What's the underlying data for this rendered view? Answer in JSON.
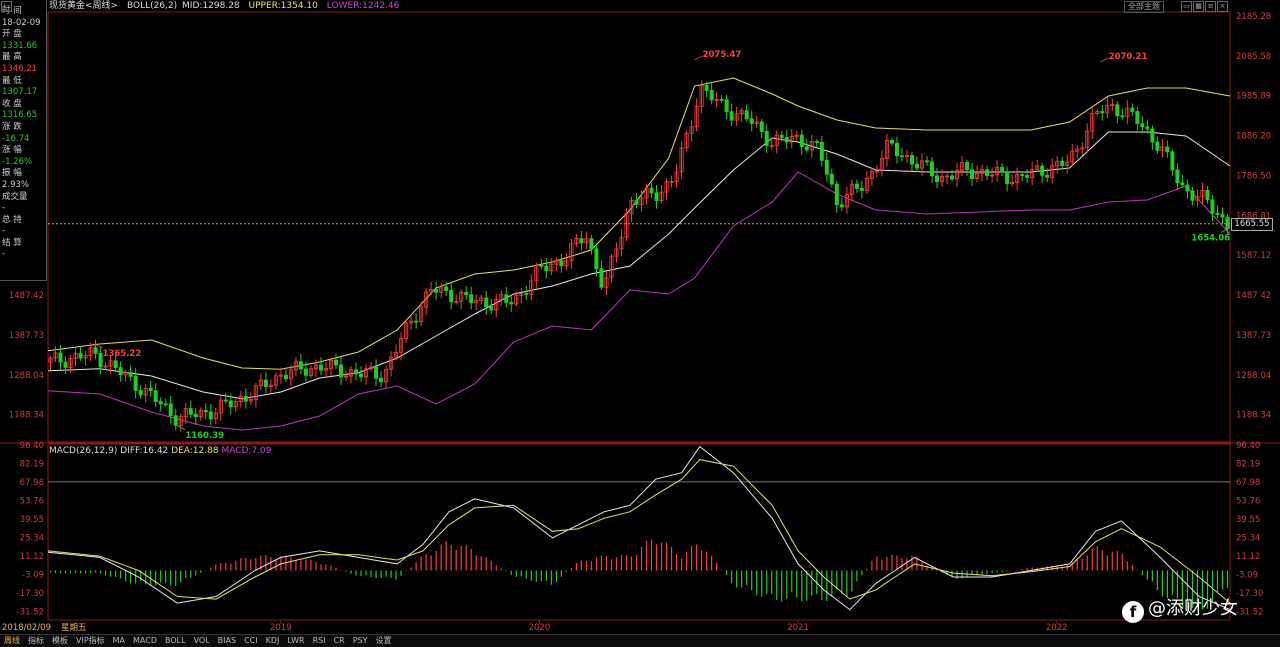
{
  "header": {
    "title": "现货黄金<周线>",
    "boll_label": "BOLL(26,2)",
    "mid": "MID:1298.28",
    "upper": "UPPER:1354.10",
    "lower": "LOWER:1242.46",
    "theme_button": "全部主题"
  },
  "macd_header": {
    "label": "MACD(26,12,9)",
    "diff": "DIFF:16.42",
    "dea": "DEA:12.88",
    "macd": "MACD:7.09"
  },
  "info_panel": {
    "items": [
      {
        "label": "时 间",
        "value": "18-02-09",
        "value_color": "white"
      },
      {
        "label": "开 盘",
        "value": "1331.66",
        "value_color": "green"
      },
      {
        "label": "最 高",
        "value": "1346.21",
        "value_color": "red"
      },
      {
        "label": "最 低",
        "value": "1307.17",
        "value_color": "green"
      },
      {
        "label": "收 盘",
        "value": "1316.65",
        "value_color": "green"
      },
      {
        "label": "涨 跌",
        "value": "-16.74",
        "value_color": "green"
      },
      {
        "label": "涨 幅",
        "value": "-1.26%",
        "value_color": "green"
      },
      {
        "label": "振 幅",
        "value": "2.93%",
        "value_color": "white"
      },
      {
        "label": "成交量",
        "value": "-",
        "value_color": "white"
      },
      {
        "label": "总 持",
        "value": "-",
        "value_color": "white"
      },
      {
        "label": "结 算",
        "value": "-",
        "value_color": "white"
      }
    ]
  },
  "current_price": "1665.55",
  "bottom_bar": {
    "date": "2018/02/09",
    "weekday": "星期五"
  },
  "tabs": [
    {
      "label": "周线",
      "active": true
    },
    {
      "label": "指标",
      "active": false
    },
    {
      "label": "模板",
      "active": false
    },
    {
      "label": "VIP指标",
      "active": false
    },
    {
      "label": "MA",
      "active": false
    },
    {
      "label": "MACD",
      "active": false
    },
    {
      "label": "BOLL",
      "active": false
    },
    {
      "label": "VOL",
      "active": false
    },
    {
      "label": "BIAS",
      "active": false
    },
    {
      "label": "CCI",
      "active": false
    },
    {
      "label": "KDJ",
      "active": false
    },
    {
      "label": "LWR",
      "active": false
    },
    {
      "label": "RSI",
      "active": false
    },
    {
      "label": "CR",
      "active": false
    },
    {
      "label": "PSY",
      "active": false
    },
    {
      "label": "设置",
      "active": false
    }
  ],
  "watermark": "@添财少女",
  "colors": {
    "up": "#ff3b3b",
    "down": "#1fcf1f",
    "upper_band": "#e6e06a",
    "mid_band": "#e8e8e8",
    "lower_band": "#c033c0",
    "dea": "#e6e06a",
    "diff": "#e8e8e8",
    "grid": "#8a1a1a"
  },
  "chart_data": [
    {
      "type": "line",
      "title": "",
      "y_ticks": [
        2185.28,
        2085.58,
        1985.89,
        1886.2,
        1786.5,
        1686.81,
        1587.12,
        1487.42,
        1387.73,
        1288.04,
        1188.34
      ],
      "ylim": [
        1120,
        2195
      ],
      "x_ticks": [
        "2019",
        "2020",
        "2021",
        "2022"
      ],
      "x_tick_pos": [
        2019.0,
        2020.0,
        2021.0,
        2022.0
      ],
      "xlim": [
        2018.1,
        2022.67
      ],
      "annotations": [
        {
          "text": "1365.22",
          "x": 2018.28,
          "y": 1365.22
        },
        {
          "text": "1160.39",
          "x": 2018.6,
          "y": 1160.39
        },
        {
          "text": "2075.47",
          "x": 2020.6,
          "y": 2075.47
        },
        {
          "text": "2070.21",
          "x": 2022.17,
          "y": 2070.21
        },
        {
          "text": "1654.06",
          "x": 2022.66,
          "y": 1654.06
        }
      ],
      "reference_price": 1665.55,
      "series": [
        {
          "name": "UPPER",
          "x": [
            2018.1,
            2018.3,
            2018.5,
            2018.7,
            2018.85,
            2019.0,
            2019.15,
            2019.3,
            2019.45,
            2019.6,
            2019.75,
            2019.9,
            2020.05,
            2020.2,
            2020.35,
            2020.5,
            2020.6,
            2020.75,
            2020.9,
            2021.0,
            2021.15,
            2021.3,
            2021.5,
            2021.7,
            2021.9,
            2022.05,
            2022.2,
            2022.35,
            2022.5,
            2022.67
          ],
          "y": [
            1348,
            1365,
            1375,
            1330,
            1305,
            1302,
            1320,
            1345,
            1400,
            1505,
            1540,
            1550,
            1570,
            1600,
            1700,
            1830,
            2010,
            2030,
            1990,
            1960,
            1925,
            1905,
            1900,
            1900,
            1900,
            1920,
            1985,
            2005,
            2005,
            1985
          ]
        },
        {
          "name": "MID",
          "x": [
            2018.1,
            2018.3,
            2018.5,
            2018.7,
            2018.85,
            2019.0,
            2019.15,
            2019.3,
            2019.45,
            2019.6,
            2019.75,
            2019.9,
            2020.05,
            2020.2,
            2020.35,
            2020.5,
            2020.6,
            2020.75,
            2020.9,
            2021.0,
            2021.15,
            2021.3,
            2021.5,
            2021.7,
            2021.9,
            2022.05,
            2022.2,
            2022.35,
            2022.5,
            2022.67
          ],
          "y": [
            1298,
            1303,
            1285,
            1245,
            1228,
            1245,
            1280,
            1293,
            1330,
            1385,
            1440,
            1490,
            1510,
            1540,
            1560,
            1640,
            1705,
            1800,
            1880,
            1870,
            1840,
            1800,
            1795,
            1795,
            1795,
            1805,
            1895,
            1895,
            1885,
            1810
          ]
        },
        {
          "name": "LOWER",
          "x": [
            2018.1,
            2018.3,
            2018.5,
            2018.7,
            2018.85,
            2019.0,
            2019.15,
            2019.3,
            2019.45,
            2019.6,
            2019.75,
            2019.9,
            2020.05,
            2020.2,
            2020.35,
            2020.5,
            2020.6,
            2020.75,
            2020.9,
            2021.0,
            2021.15,
            2021.3,
            2021.5,
            2021.7,
            2021.9,
            2022.05,
            2022.2,
            2022.35,
            2022.5,
            2022.67
          ],
          "y": [
            1248,
            1240,
            1195,
            1160,
            1150,
            1160,
            1185,
            1240,
            1260,
            1215,
            1265,
            1370,
            1410,
            1400,
            1500,
            1490,
            1530,
            1660,
            1720,
            1795,
            1740,
            1700,
            1690,
            1695,
            1700,
            1700,
            1720,
            1725,
            1760,
            1640
          ]
        }
      ]
    },
    {
      "type": "bar",
      "title": "",
      "y_ticks": [
        96.4,
        82.19,
        67.98,
        53.76,
        39.55,
        25.34,
        11.12,
        -3.09,
        -17.3,
        -31.52
      ],
      "ylim": [
        -38,
        97
      ],
      "reference_level": 67.98,
      "series": [
        {
          "name": "DIFF",
          "x": [
            2018.1,
            2018.2,
            2018.3,
            2018.45,
            2018.6,
            2018.75,
            2018.9,
            2019.0,
            2019.15,
            2019.3,
            2019.45,
            2019.55,
            2019.65,
            2019.75,
            2019.9,
            2020.05,
            2020.15,
            2020.25,
            2020.35,
            2020.45,
            2020.55,
            2020.62,
            2020.75,
            2020.9,
            2021.0,
            2021.1,
            2021.2,
            2021.3,
            2021.45,
            2021.6,
            2021.75,
            2021.9,
            2022.05,
            2022.15,
            2022.25,
            2022.4,
            2022.55,
            2022.67
          ],
          "y": [
            14,
            12,
            10,
            -5,
            -25,
            -20,
            0,
            10,
            15,
            10,
            5,
            20,
            45,
            55,
            48,
            25,
            35,
            45,
            50,
            70,
            75,
            95,
            75,
            40,
            5,
            -15,
            -30,
            -10,
            10,
            -5,
            -5,
            0,
            5,
            30,
            38,
            10,
            -20,
            -30
          ]
        },
        {
          "name": "DEA",
          "x": [
            2018.1,
            2018.2,
            2018.3,
            2018.45,
            2018.6,
            2018.75,
            2018.9,
            2019.0,
            2019.15,
            2019.3,
            2019.45,
            2019.55,
            2019.65,
            2019.75,
            2019.9,
            2020.05,
            2020.15,
            2020.25,
            2020.35,
            2020.45,
            2020.55,
            2020.62,
            2020.75,
            2020.9,
            2021.0,
            2021.1,
            2021.2,
            2021.3,
            2021.45,
            2021.6,
            2021.75,
            2021.9,
            2022.05,
            2022.15,
            2022.25,
            2022.4,
            2022.55,
            2022.67
          ],
          "y": [
            15,
            13,
            11,
            0,
            -20,
            -22,
            -5,
            5,
            12,
            12,
            8,
            15,
            35,
            48,
            50,
            30,
            32,
            40,
            45,
            58,
            70,
            85,
            80,
            50,
            15,
            -5,
            -22,
            -15,
            5,
            -2,
            -4,
            -1,
            3,
            22,
            32,
            18,
            -5,
            -25
          ]
        },
        {
          "name": "MACD",
          "x": [
            2018.1,
            2018.2,
            2018.3,
            2018.45,
            2018.6,
            2018.75,
            2018.9,
            2019.0,
            2019.15,
            2019.3,
            2019.45,
            2019.55,
            2019.65,
            2019.75,
            2019.9,
            2020.05,
            2020.15,
            2020.25,
            2020.35,
            2020.45,
            2020.55,
            2020.62,
            2020.75,
            2020.9,
            2021.0,
            2021.1,
            2021.2,
            2021.3,
            2021.45,
            2021.6,
            2021.75,
            2021.9,
            2022.05,
            2022.15,
            2022.25,
            2022.4,
            2022.55,
            2022.67
          ],
          "y": [
            -2,
            -2,
            -2,
            -10,
            -10,
            4,
            10,
            10,
            6,
            -4,
            -6,
            10,
            20,
            14,
            -4,
            -10,
            6,
            10,
            10,
            24,
            10,
            20,
            -10,
            -20,
            -20,
            -20,
            -16,
            10,
            10,
            -6,
            -2,
            2,
            4,
            16,
            12,
            -16,
            -30,
            -10
          ]
        }
      ]
    }
  ]
}
